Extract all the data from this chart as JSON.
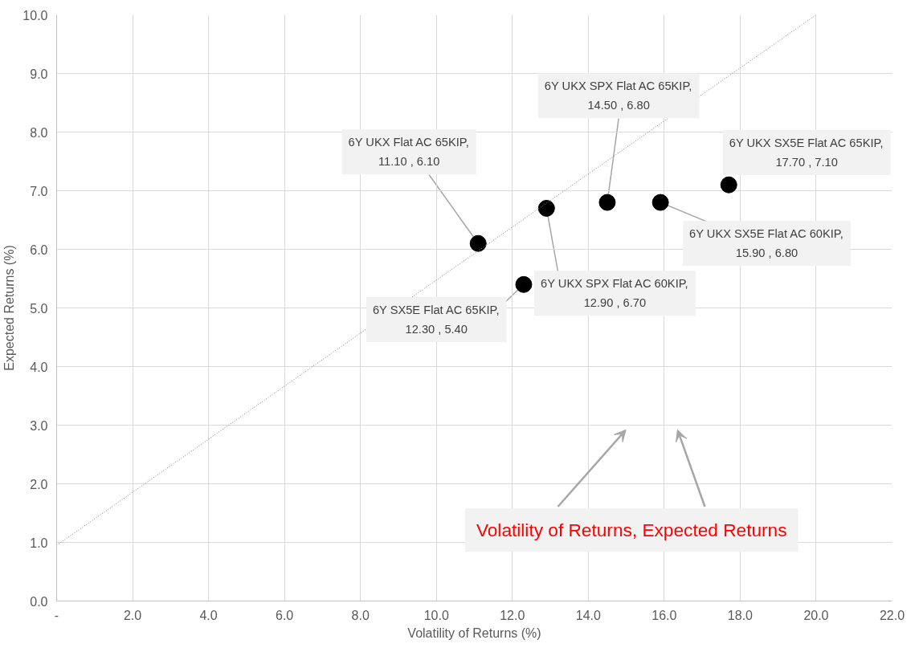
{
  "chart_data": {
    "type": "scatter",
    "xlabel": "Volatility of Returns (%)",
    "ylabel": "Expected Returns (%)",
    "xlim": [
      0,
      22
    ],
    "ylim": [
      0,
      10
    ],
    "xticks": [
      {
        "value": 0,
        "label": "-"
      },
      {
        "value": 2,
        "label": "2.0"
      },
      {
        "value": 4,
        "label": "4.0"
      },
      {
        "value": 6,
        "label": "6.0"
      },
      {
        "value": 8,
        "label": "8.0"
      },
      {
        "value": 10,
        "label": "10.0"
      },
      {
        "value": 12,
        "label": "12.0"
      },
      {
        "value": 14,
        "label": "14.0"
      },
      {
        "value": 16,
        "label": "16.0"
      },
      {
        "value": 18,
        "label": "18.0"
      },
      {
        "value": 20,
        "label": "20.0"
      },
      {
        "value": 22,
        "label": "22.0"
      }
    ],
    "yticks": [
      {
        "value": 0,
        "label": "0.0"
      },
      {
        "value": 1,
        "label": "1.0"
      },
      {
        "value": 2,
        "label": "2.0"
      },
      {
        "value": 3,
        "label": "3.0"
      },
      {
        "value": 4,
        "label": "4.0"
      },
      {
        "value": 5,
        "label": "5.0"
      },
      {
        "value": 6,
        "label": "6.0"
      },
      {
        "value": 7,
        "label": "7.0"
      },
      {
        "value": 8,
        "label": "8.0"
      },
      {
        "value": 9,
        "label": "9.0"
      },
      {
        "value": 10,
        "label": "10.0"
      }
    ],
    "grid": true,
    "marker": "circle",
    "series": [
      {
        "color": "#000000",
        "x": [
          11.1,
          12.3,
          12.9,
          14.5,
          15.9,
          17.7
        ],
        "values": [
          6.1,
          5.4,
          6.7,
          6.8,
          6.8,
          7.1
        ],
        "value_labels": [
          "6Y UKX Flat AC 65KIP,\n11.10 , 6.10",
          "6Y SX5E Flat AC 65KIP,\n12.30 , 5.40",
          "6Y UKX SPX Flat AC 60KIP,\n12.90 , 6.70",
          "6Y UKX SPX Flat AC 65KIP,\n14.50 , 6.80",
          "6Y UKX SX5E Flat AC 60KIP,\n15.90 , 6.80",
          "6Y UKX SX5E Flat AC 65KIP,\n17.70 , 7.10"
        ]
      },
      {
        "type": "line",
        "color": "#7f7f7f",
        "line_style": "dotted",
        "marker": "none",
        "x": [
          0,
          20.0
        ],
        "values": [
          0.95,
          10.0
        ]
      }
    ],
    "annotations": [
      "Volatility of Returns, Expected Returns"
    ]
  }
}
